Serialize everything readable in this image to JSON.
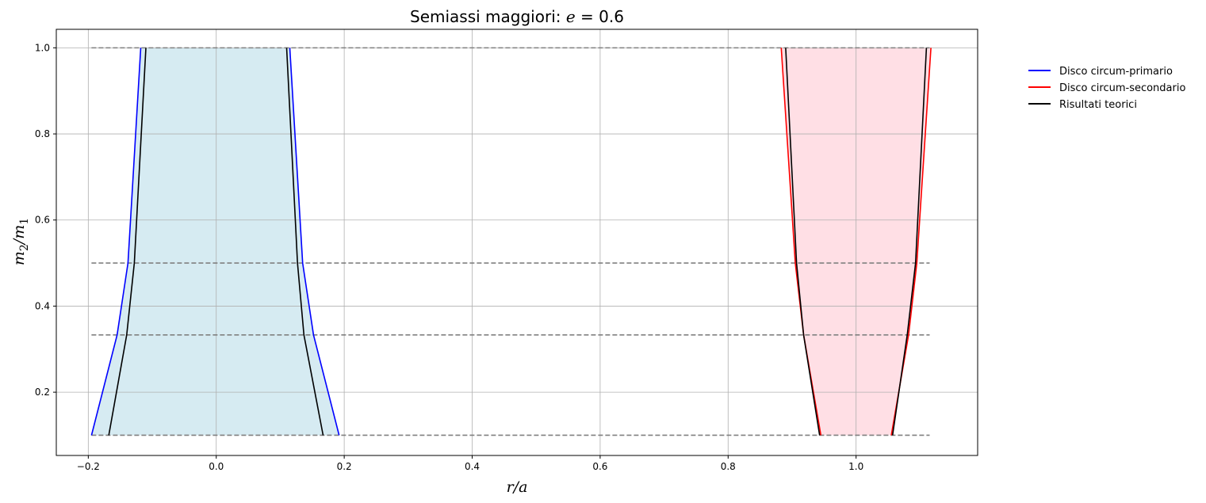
{
  "chart_data": {
    "type": "line",
    "title": "Semiassi maggiori: ",
    "title_symbol": "e",
    "title_value": " = 0.6",
    "xlabel": "r/a",
    "ylabel": "m",
    "ylabel_sub1": "2",
    "ylabel_sep": "/m",
    "ylabel_sub2": "1",
    "xlim": [
      -0.25,
      1.19
    ],
    "ylim": [
      0.053,
      1.043
    ],
    "xticks": [
      -0.2,
      0.0,
      0.2,
      0.4,
      0.6,
      0.8,
      1.0
    ],
    "xtick_labels": [
      "−0.2",
      "0.0",
      "0.2",
      "0.4",
      "0.6",
      "0.8",
      "1.0"
    ],
    "yticks": [
      0.2,
      0.4,
      0.6,
      0.8,
      1.0
    ],
    "ytick_labels": [
      "0.2",
      "0.4",
      "0.6",
      "0.8",
      "1.0"
    ],
    "grid": true,
    "legend_position": "outside-upper-right",
    "reference_lines": [
      {
        "y": 0.1,
        "x_range": [
          -0.195,
          1.115
        ],
        "color": "#808080",
        "style": "dashed"
      },
      {
        "y": 0.333,
        "x_range": [
          -0.195,
          1.115
        ],
        "color": "#808080",
        "style": "dashed"
      },
      {
        "y": 0.5,
        "x_range": [
          -0.195,
          1.115
        ],
        "color": "#808080",
        "style": "dashed"
      },
      {
        "y": 1.0,
        "x_range": [
          -0.195,
          1.115
        ],
        "color": "#808080",
        "style": "dashed"
      }
    ],
    "fills": [
      {
        "color": "#add8e6",
        "opacity": 0.5,
        "left": [
          [
            -0.195,
            0.1
          ],
          [
            -0.155,
            0.333
          ],
          [
            -0.138,
            0.5
          ],
          [
            -0.118,
            1.0
          ]
        ],
        "right": [
          [
            0.192,
            0.1
          ],
          [
            0.152,
            0.333
          ],
          [
            0.135,
            0.5
          ],
          [
            0.115,
            1.0
          ]
        ]
      },
      {
        "color": "#ffc0cb",
        "opacity": 0.5,
        "left": [
          [
            0.945,
            0.1
          ],
          [
            0.918,
            0.333
          ],
          [
            0.905,
            0.5
          ],
          [
            0.883,
            1.0
          ]
        ],
        "right": [
          [
            1.055,
            0.1
          ],
          [
            1.082,
            0.333
          ],
          [
            1.095,
            0.5
          ],
          [
            1.117,
            1.0
          ]
        ]
      }
    ],
    "series": [
      {
        "name": "Disco circum-primario",
        "color": "#0000ff",
        "segments": [
          {
            "x": [
              -0.195,
              -0.155,
              -0.138,
              -0.118
            ],
            "y": [
              0.1,
              0.333,
              0.5,
              1.0
            ]
          },
          {
            "x": [
              0.192,
              0.152,
              0.135,
              0.115
            ],
            "y": [
              0.1,
              0.333,
              0.5,
              1.0
            ]
          }
        ]
      },
      {
        "name": "Disco circum-secondario",
        "color": "#ff0000",
        "segments": [
          {
            "x": [
              0.945,
              0.918,
              0.905,
              0.883
            ],
            "y": [
              0.1,
              0.333,
              0.5,
              1.0
            ]
          },
          {
            "x": [
              1.055,
              1.082,
              1.095,
              1.117
            ],
            "y": [
              0.1,
              0.333,
              0.5,
              1.0
            ]
          }
        ]
      },
      {
        "name": "Risultati teorici",
        "color": "#000000",
        "segments": [
          {
            "x": [
              -0.168,
              -0.14,
              -0.128,
              -0.11
            ],
            "y": [
              0.1,
              0.333,
              0.5,
              1.0
            ]
          },
          {
            "x": [
              0.167,
              0.137,
              0.127,
              0.11
            ],
            "y": [
              0.1,
              0.333,
              0.5,
              1.0
            ]
          },
          {
            "x": [
              0.943,
              0.918,
              0.907,
              0.89
            ],
            "y": [
              0.1,
              0.333,
              0.5,
              1.0
            ]
          },
          {
            "x": [
              1.057,
              1.08,
              1.093,
              1.11
            ],
            "y": [
              0.1,
              0.333,
              0.5,
              1.0
            ]
          }
        ]
      }
    ]
  }
}
